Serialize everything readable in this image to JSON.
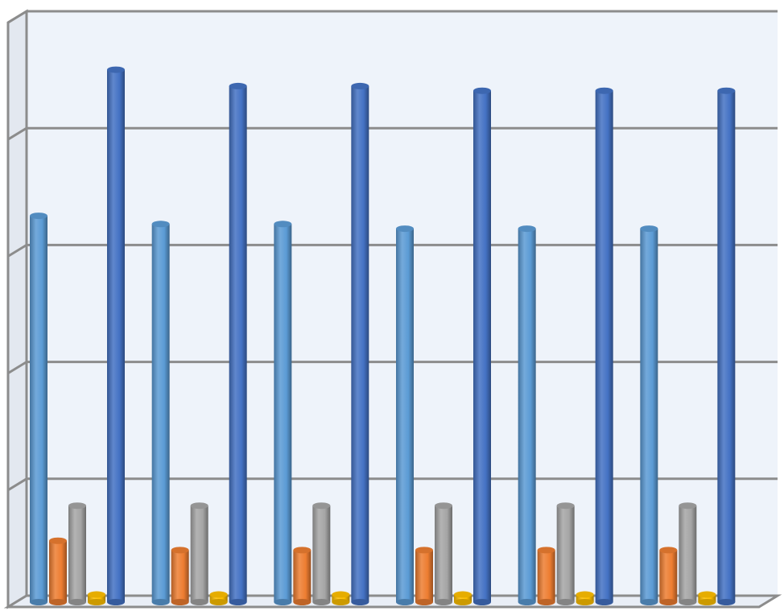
{
  "chart_data": {
    "type": "bar",
    "categories": [
      "",
      "",
      "",
      "",
      "",
      ""
    ],
    "series": [
      {
        "values": [
          3.25,
          3.18,
          3.18,
          3.14,
          3.14,
          3.14
        ],
        "color": "#5B9BD5"
      },
      {
        "values": [
          0.47,
          0.39,
          0.39,
          0.39,
          0.39,
          0.39
        ],
        "color": "#ED7D31"
      },
      {
        "values": [
          0.77,
          0.77,
          0.77,
          0.77,
          0.77,
          0.77
        ],
        "color": "#A5A5A5"
      },
      {
        "values": [
          0.01,
          0.01,
          0.01,
          0.01,
          0.01,
          0.01
        ],
        "color": "#FFC000"
      },
      {
        "values": [
          4.5,
          4.36,
          4.36,
          4.32,
          4.32,
          4.32
        ],
        "color": "#4472C4"
      }
    ],
    "ylim": [
      0,
      5
    ],
    "grid": true,
    "style": "3d-cylinder",
    "colors": {
      "plot_background": "#EEF3FA",
      "side_wall": "#E3E8F0",
      "grid": "#8C8C8C",
      "frame": "#8C8C8C"
    }
  }
}
